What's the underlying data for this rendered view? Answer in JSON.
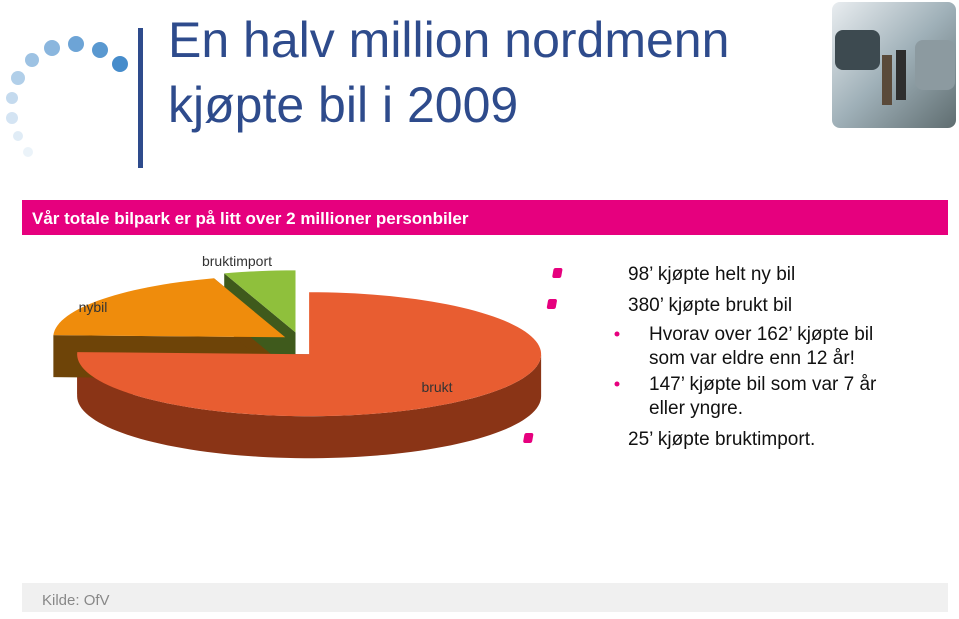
{
  "slide": {
    "title": [
      "En halv million nordmenn",
      "kjøpte bil i 2009"
    ],
    "banner": "Vår totale bilpark er på litt over 2 millioner personbiler",
    "bullets": [
      {
        "level": 1,
        "lines": [
          "98’ kjøpte helt ny bil"
        ]
      },
      {
        "level": 1,
        "lines": [
          "380’ kjøpte brukt bil"
        ]
      },
      {
        "level": 2,
        "lines": [
          "Hvorav over 162’ kjøpte bil",
          "som var eldre enn 12 år!"
        ]
      },
      {
        "level": 2,
        "lines": [
          "147’ kjøpte bil som var 7 år",
          "eller yngre."
        ]
      },
      {
        "level": 1,
        "lines": [
          "25’ kjøpte bruktimport."
        ]
      }
    ],
    "source": "Kilde: OfV"
  },
  "chart_data": {
    "type": "pie",
    "categories": [
      "brukt",
      "nybil",
      "bruktimport"
    ],
    "values": [
      380,
      98,
      25
    ],
    "colors": [
      "#e85d31",
      "#ef8c0c",
      "#8fc03c"
    ],
    "side_colors": [
      "#8a3416",
      "#6e4408",
      "#3f5a1c"
    ]
  }
}
